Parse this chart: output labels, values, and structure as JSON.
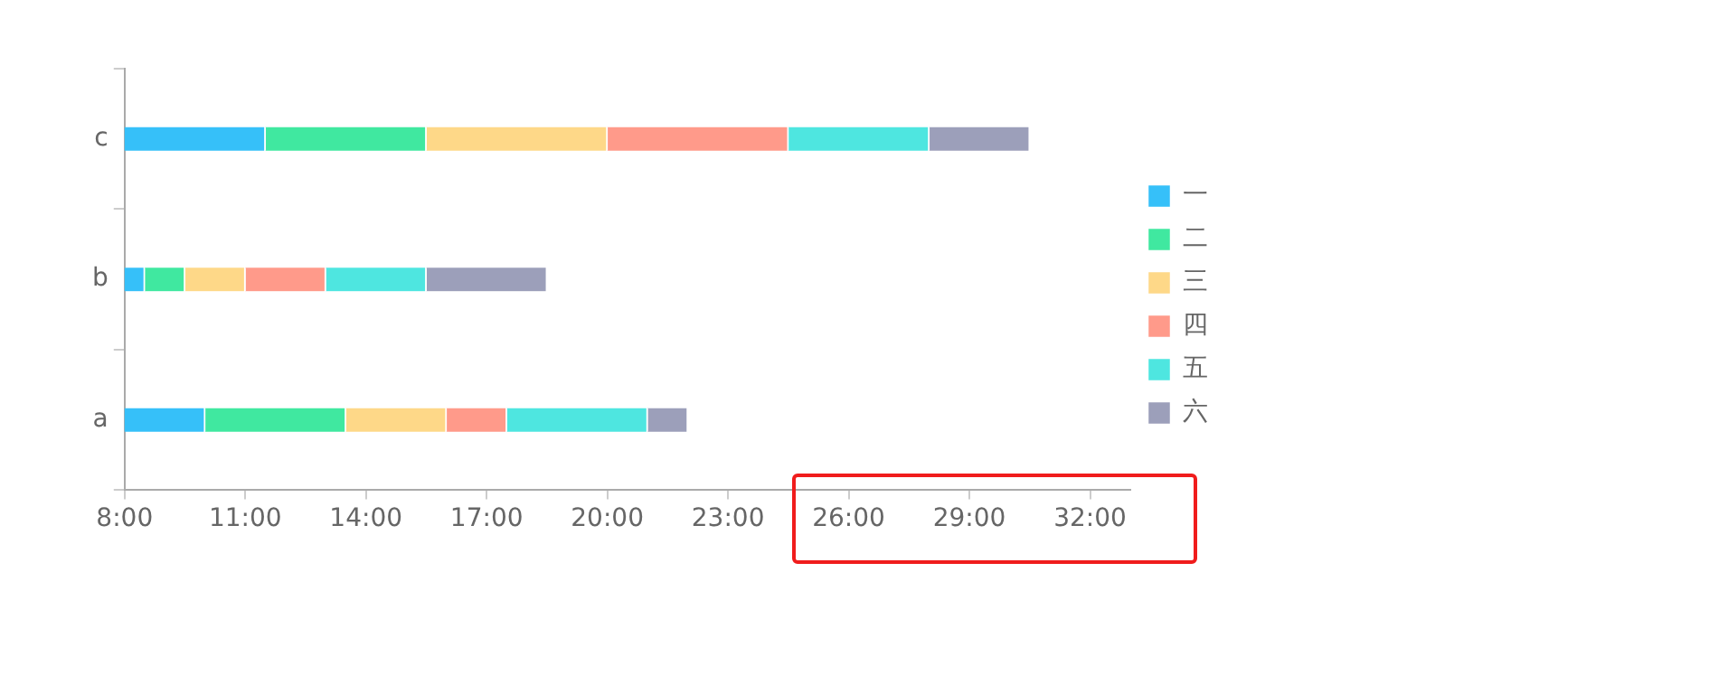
{
  "chart_data": {
    "type": "bar",
    "orientation": "horizontal",
    "categories": [
      "c",
      "b",
      "a"
    ],
    "series": [
      {
        "name": "一",
        "color": "#36c0f9",
        "base": [
          8,
          8,
          8
        ],
        "values": [
          3.5,
          0.5,
          2
        ]
      },
      {
        "name": "二",
        "color": "#40e8a0",
        "base": [
          11.5,
          8.5,
          10
        ],
        "values": [
          4,
          1,
          3.5
        ]
      },
      {
        "name": "三",
        "color": "#fed888",
        "base": [
          15.5,
          9.5,
          13.5
        ],
        "values": [
          4.5,
          1.5,
          2.5
        ]
      },
      {
        "name": "四",
        "color": "#ff9a8a",
        "base": [
          20,
          11,
          16
        ],
        "values": [
          4.5,
          2,
          1.5
        ]
      },
      {
        "name": "五",
        "color": "#4ee6e0",
        "base": [
          24.5,
          13,
          17.5
        ],
        "values": [
          3.5,
          2.5,
          3.5
        ]
      },
      {
        "name": "六",
        "color": "#9c9fba",
        "base": [
          28,
          15.5,
          21
        ],
        "values": [
          2.5,
          3,
          1
        ]
      }
    ],
    "xlim": [
      8,
      33
    ],
    "xticks": [
      {
        "value": 8,
        "label": "8:00"
      },
      {
        "value": 11,
        "label": "11:00"
      },
      {
        "value": 14,
        "label": "14:00"
      },
      {
        "value": 17,
        "label": "17:00"
      },
      {
        "value": 20,
        "label": "20:00"
      },
      {
        "value": 23,
        "label": "23:00"
      },
      {
        "value": 26,
        "label": "26:00"
      },
      {
        "value": 29,
        "label": "29:00"
      },
      {
        "value": 32,
        "label": "32:00"
      }
    ],
    "grid": false,
    "legend": "right"
  }
}
